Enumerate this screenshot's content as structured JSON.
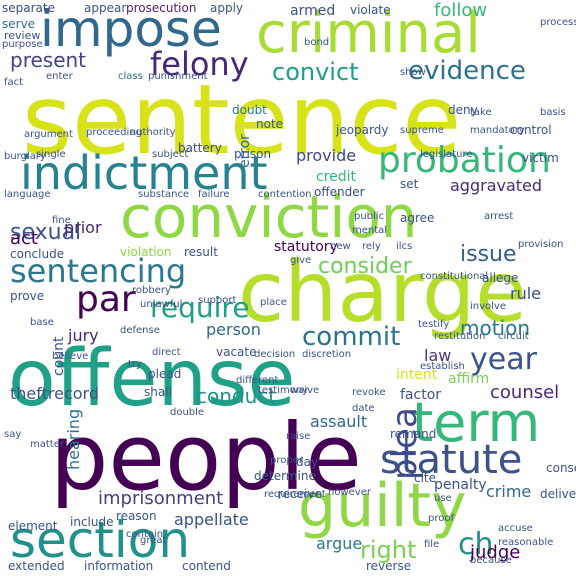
{
  "palette": {
    "purple": "#440154",
    "indigo": "#3b528b",
    "blue": "#31688e",
    "teal": "#21918c",
    "green": "#35b779",
    "lime": "#8fd744",
    "yellow": "#d8e219",
    "yellow_bright": "#e8e419"
  },
  "words": [
    {
      "text": "sentence",
      "color": "#d8e219"
    },
    {
      "text": "charge",
      "color": "#b5de2b"
    },
    {
      "text": "offense",
      "color": "#1fa187"
    },
    {
      "text": "people",
      "color": "#440154"
    },
    {
      "text": "conviction",
      "color": "#8fd744"
    },
    {
      "text": "criminal",
      "color": "#a8db34"
    },
    {
      "text": "impose",
      "color": "#31688e"
    },
    {
      "text": "indictment",
      "color": "#26828e"
    },
    {
      "text": "guilty",
      "color": "#8fd744"
    },
    {
      "text": "term",
      "color": "#35b779"
    },
    {
      "text": "section",
      "color": "#21918c"
    },
    {
      "text": "statute",
      "color": "#3b528b"
    },
    {
      "text": "sentencing",
      "color": "#2a788e"
    },
    {
      "text": "probation",
      "color": "#35b779"
    },
    {
      "text": "felony",
      "color": "#482677"
    },
    {
      "text": "par",
      "color": "#440154"
    },
    {
      "text": "year",
      "color": "#3b528b"
    },
    {
      "text": "plea",
      "color": "#3e4a89"
    },
    {
      "text": "evidence",
      "color": "#2c728e"
    },
    {
      "text": "convict",
      "color": "#1f9e89"
    },
    {
      "text": "present",
      "color": "#414487"
    },
    {
      "text": "commit",
      "color": "#2c728e"
    },
    {
      "text": "require",
      "color": "#1f9e89"
    },
    {
      "text": "consider",
      "color": "#6ece58"
    },
    {
      "text": "sexual",
      "color": "#3b528b"
    },
    {
      "text": "issue",
      "color": "#35608d"
    },
    {
      "text": "right",
      "color": "#7ad151"
    },
    {
      "text": "ch",
      "color": "#21918c"
    },
    {
      "text": "aggravated",
      "color": "#472c7a"
    },
    {
      "text": "counsel",
      "color": "#482878"
    },
    {
      "text": "motion",
      "color": "#2a788e"
    },
    {
      "text": "conduct",
      "color": "#21918c"
    },
    {
      "text": "theftrecord",
      "color": "#3b528b"
    },
    {
      "text": "imprisonment",
      "color": "#433e85"
    },
    {
      "text": "judge",
      "color": "#440154"
    },
    {
      "text": "crime",
      "color": "#31688e"
    },
    {
      "text": "argue",
      "color": "#2a788e"
    },
    {
      "text": "appellate",
      "color": "#3b528b"
    },
    {
      "text": "act",
      "color": "#440154"
    },
    {
      "text": "prior",
      "color": "#482677"
    },
    {
      "text": "provide",
      "color": "#3e4a89"
    },
    {
      "text": "armed",
      "color": "#3b528b"
    },
    {
      "text": "follow",
      "color": "#35b779"
    },
    {
      "text": "jury",
      "color": "#482677"
    },
    {
      "text": "person",
      "color": "#31688e"
    },
    {
      "text": "assault",
      "color": "#31688e"
    },
    {
      "text": "law",
      "color": "#453781"
    },
    {
      "text": "rule",
      "color": "#3e4a89"
    },
    {
      "text": "hearing",
      "color": "#2c728e"
    },
    {
      "text": "count",
      "color": "#3b528b"
    },
    {
      "text": "error",
      "color": "#31688e"
    },
    {
      "text": "factor",
      "color": "#3b528b"
    },
    {
      "text": "affirm",
      "color": "#7ad151"
    },
    {
      "text": "intent",
      "color": "#d8e219"
    },
    {
      "text": "penalty",
      "color": "#3b528b"
    },
    {
      "text": "credit",
      "color": "#35b779"
    },
    {
      "text": "offender",
      "color": "#3e4a89"
    },
    {
      "text": "prosecution",
      "color": "#482677"
    },
    {
      "text": "apply",
      "color": "#3b528b"
    },
    {
      "text": "appear",
      "color": "#3b528b"
    },
    {
      "text": "separate",
      "color": "#3e4a89"
    },
    {
      "text": "violate",
      "color": "#3b528b"
    },
    {
      "text": "serve",
      "color": "#2c728e"
    },
    {
      "text": "review",
      "color": "#3b528b"
    },
    {
      "text": "purpose",
      "color": "#3b528b"
    },
    {
      "text": "enter",
      "color": "#3b528b"
    },
    {
      "text": "class",
      "color": "#31688e"
    },
    {
      "text": "punishment",
      "color": "#3b528b"
    },
    {
      "text": "note",
      "color": "#3b528b"
    },
    {
      "text": "doubt",
      "color": "#2a788e"
    },
    {
      "text": "deny",
      "color": "#3b528b"
    },
    {
      "text": "jeopardy",
      "color": "#3b528b"
    },
    {
      "text": "control",
      "color": "#3b528b"
    },
    {
      "text": "victim",
      "color": "#3b528b"
    },
    {
      "text": "prison",
      "color": "#3b528b"
    },
    {
      "text": "battery",
      "color": "#3e4a89"
    },
    {
      "text": "set",
      "color": "#3b528b"
    },
    {
      "text": "substance",
      "color": "#3b528b"
    },
    {
      "text": "failure",
      "color": "#3b528b"
    },
    {
      "text": "contention",
      "color": "#3b528b"
    },
    {
      "text": "public",
      "color": "#3b528b"
    },
    {
      "text": "agree",
      "color": "#3b528b"
    },
    {
      "text": "conclude",
      "color": "#3b528b"
    },
    {
      "text": "violation",
      "color": "#8fd744"
    },
    {
      "text": "result",
      "color": "#3b528b"
    },
    {
      "text": "statutory",
      "color": "#440154"
    },
    {
      "text": "give",
      "color": "#3b528b"
    },
    {
      "text": "constitutional",
      "color": "#3b528b"
    },
    {
      "text": "allege",
      "color": "#3b528b"
    },
    {
      "text": "prove",
      "color": "#3b528b"
    },
    {
      "text": "robbery",
      "color": "#3b528b"
    },
    {
      "text": "unlawful",
      "color": "#3b528b"
    },
    {
      "text": "place",
      "color": "#3b528b"
    },
    {
      "text": "base",
      "color": "#3b528b"
    },
    {
      "text": "defense",
      "color": "#3b528b"
    },
    {
      "text": "testify",
      "color": "#3b528b"
    },
    {
      "text": "involve",
      "color": "#3b528b"
    },
    {
      "text": "vacate",
      "color": "#3b528b"
    },
    {
      "text": "decision",
      "color": "#3b528b"
    },
    {
      "text": "discretion",
      "color": "#3b528b"
    },
    {
      "text": "restitution",
      "color": "#3b528b"
    },
    {
      "text": "circuit",
      "color": "#3b528b"
    },
    {
      "text": "direct",
      "color": "#3b528b"
    },
    {
      "text": "plead",
      "color": "#3b528b"
    },
    {
      "text": "shall",
      "color": "#3b528b"
    },
    {
      "text": "establish",
      "color": "#3b528b"
    },
    {
      "text": "waive",
      "color": "#3b528b"
    },
    {
      "text": "testimony",
      "color": "#3b528b"
    },
    {
      "text": "revoke",
      "color": "#3b528b"
    },
    {
      "text": "remand",
      "color": "#3b528b"
    },
    {
      "text": "raise",
      "color": "#3b528b"
    },
    {
      "text": "day",
      "color": "#3b528b"
    },
    {
      "text": "cite",
      "color": "#3b528b"
    },
    {
      "text": "element",
      "color": "#3b528b"
    },
    {
      "text": "include",
      "color": "#3b528b"
    },
    {
      "text": "receive",
      "color": "#3b528b"
    },
    {
      "text": "however",
      "color": "#3b528b"
    },
    {
      "text": "reason",
      "color": "#3b528b"
    },
    {
      "text": "contain",
      "color": "#3b528b"
    },
    {
      "text": "determine",
      "color": "#3b528b"
    },
    {
      "text": "requirement",
      "color": "#3b528b"
    },
    {
      "text": "consecutive",
      "color": "#3b528b"
    },
    {
      "text": "great",
      "color": "#3b528b"
    },
    {
      "text": "extended",
      "color": "#3b528b"
    },
    {
      "text": "information",
      "color": "#3b528b"
    },
    {
      "text": "contend",
      "color": "#3b528b"
    },
    {
      "text": "reverse",
      "color": "#3b528b"
    },
    {
      "text": "deliver",
      "color": "#3b528b"
    },
    {
      "text": "use",
      "color": "#3b528b"
    },
    {
      "text": "proof",
      "color": "#3b528b"
    },
    {
      "text": "accuse",
      "color": "#3b528b"
    },
    {
      "text": "file",
      "color": "#3b528b"
    },
    {
      "text": "reasonable",
      "color": "#3b528b"
    },
    {
      "text": "argument",
      "color": "#3b528b"
    },
    {
      "text": "burglary",
      "color": "#3b528b"
    },
    {
      "text": "proceeding",
      "color": "#3b528b"
    },
    {
      "text": "authority",
      "color": "#3b528b"
    },
    {
      "text": "single",
      "color": "#3b528b"
    },
    {
      "text": "subject",
      "color": "#3b528b"
    },
    {
      "text": "legislature",
      "color": "#3b528b"
    },
    {
      "text": "supreme",
      "color": "#3b528b"
    },
    {
      "text": "mandatory",
      "color": "#3b528b"
    },
    {
      "text": "show",
      "color": "#3b528b"
    },
    {
      "text": "take",
      "color": "#3b528b"
    },
    {
      "text": "basis",
      "color": "#3b528b"
    },
    {
      "text": "process",
      "color": "#3b528b"
    },
    {
      "text": "bond",
      "color": "#3b528b"
    },
    {
      "text": "language",
      "color": "#3b528b"
    },
    {
      "text": "fine",
      "color": "#3b528b"
    },
    {
      "text": "new",
      "color": "#3b528b"
    },
    {
      "text": "rely",
      "color": "#3b528b"
    },
    {
      "text": "ilcs",
      "color": "#3b528b"
    },
    {
      "text": "provision",
      "color": "#3b528b"
    },
    {
      "text": "mental",
      "color": "#3b528b"
    },
    {
      "text": "arrest",
      "color": "#3b528b"
    },
    {
      "text": "support",
      "color": "#3b528b"
    },
    {
      "text": "try",
      "color": "#3b528b"
    },
    {
      "text": "believe",
      "color": "#3b528b"
    },
    {
      "text": "different",
      "color": "#3b528b"
    },
    {
      "text": "say",
      "color": "#3b528b"
    },
    {
      "text": "matter",
      "color": "#3b528b"
    },
    {
      "text": "double",
      "color": "#3b528b"
    },
    {
      "text": "proper",
      "color": "#3b528b"
    },
    {
      "text": "date",
      "color": "#3b528b"
    },
    {
      "text": "because",
      "color": "#3b528b"
    },
    {
      "text": "fact",
      "color": "#3b528b"
    }
  ]
}
